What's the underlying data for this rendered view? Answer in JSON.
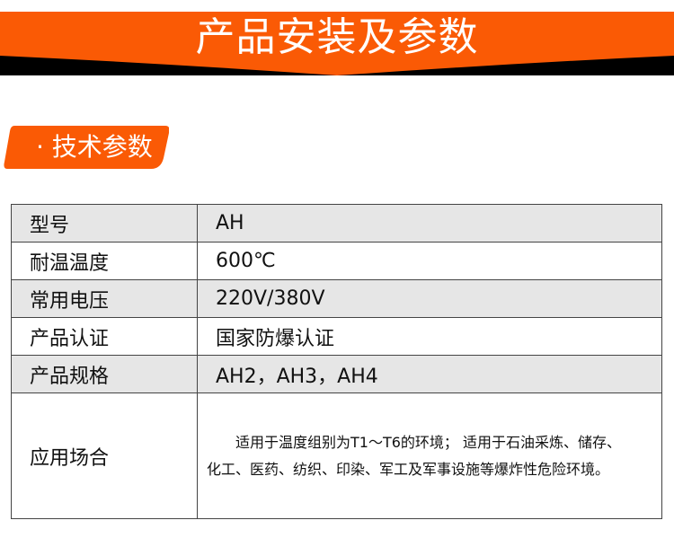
{
  "header": {
    "title": "产品安装及参数",
    "accent": "#fa5a05"
  },
  "section": {
    "title": "· 技术参数"
  },
  "table": {
    "rows": [
      {
        "label": "型号",
        "value": "AH"
      },
      {
        "label": "耐温温度",
        "value": "600℃"
      },
      {
        "label": "常用电压",
        "value": "220V/380V"
      },
      {
        "label": "产品认证",
        "value": "国家防爆认证"
      },
      {
        "label": "产品规格",
        "value": "AH2，AH3，AH4"
      }
    ],
    "application": {
      "label": "应用场合",
      "value": "　　适用于温度组别为T1～T6的环境； 适用于石油采炼、储存、化工、医药、纺织、印染、军工及军事设施等爆炸性危险环境。"
    }
  }
}
